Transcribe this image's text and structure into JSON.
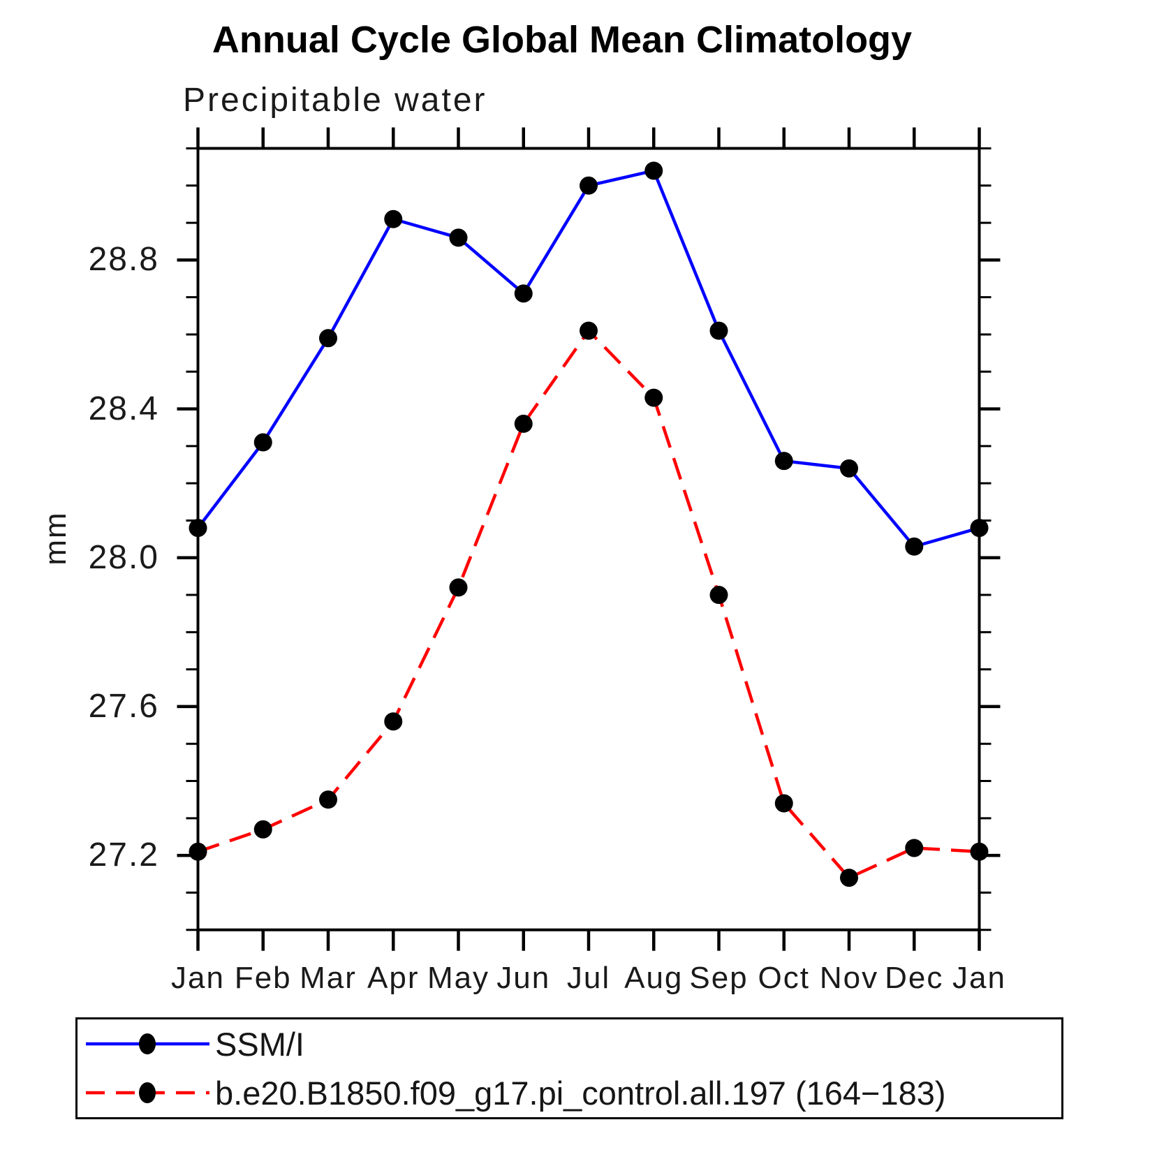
{
  "title": "Annual Cycle Global Mean Climatology",
  "subtitle": "Precipitable water",
  "ylabel": "mm",
  "xtick_labels": [
    "Jan",
    "Feb",
    "Mar",
    "Apr",
    "May",
    "Jun",
    "Jul",
    "Aug",
    "Sep",
    "Oct",
    "Nov",
    "Dec",
    "Jan"
  ],
  "ytick_labels": [
    "27.2",
    "27.6",
    "28.0",
    "28.4",
    "28.8"
  ],
  "legend": {
    "position": "bottom",
    "items": [
      {
        "label": "SSM/I",
        "color": "#0000ff",
        "line_style": "solid",
        "marker": "filled-circle",
        "marker_color": "#000000"
      },
      {
        "label": "b.e20.B1850.f09_g17.pi_control.all.197 (164−183)",
        "color": "#ff0000",
        "line_style": "dashed",
        "marker": "filled-circle",
        "marker_color": "#000000"
      }
    ]
  },
  "colors": {
    "axis": "#000000",
    "marker": "#000000",
    "obs_series": "#0000ff",
    "model_series": "#ff0000",
    "background": "#ffffff"
  },
  "chart_data": {
    "type": "line",
    "title": "Annual Cycle Global Mean Climatology",
    "subtitle": "Precipitable water",
    "xlabel": "",
    "ylabel": "mm",
    "categories": [
      "Jan",
      "Feb",
      "Mar",
      "Apr",
      "May",
      "Jun",
      "Jul",
      "Aug",
      "Sep",
      "Oct",
      "Nov",
      "Dec",
      "Jan"
    ],
    "series": [
      {
        "name": "SSM/I",
        "color": "#0000ff",
        "line_style": "solid",
        "marker": "filled-circle",
        "values": [
          28.08,
          28.31,
          28.59,
          28.91,
          28.86,
          28.71,
          29.0,
          29.04,
          28.61,
          28.26,
          28.24,
          28.03,
          28.08
        ]
      },
      {
        "name": "b.e20.B1850.f09_g17.pi_control.all.197 (164−183)",
        "color": "#ff0000",
        "line_style": "dashed",
        "marker": "filled-circle",
        "values": [
          27.21,
          27.27,
          27.35,
          27.56,
          27.92,
          28.36,
          28.61,
          28.43,
          27.9,
          27.34,
          27.14,
          27.22,
          27.21
        ]
      }
    ],
    "ylim": [
      27.0,
      29.1
    ],
    "yticks_major": [
      27.2,
      27.6,
      28.0,
      28.4,
      28.8
    ],
    "ytick_labels": [
      "27.2",
      "27.6",
      "28.0",
      "28.4",
      "28.8"
    ],
    "ytick_minor_step": 0.1,
    "grid": false,
    "legend_position": "bottom"
  }
}
